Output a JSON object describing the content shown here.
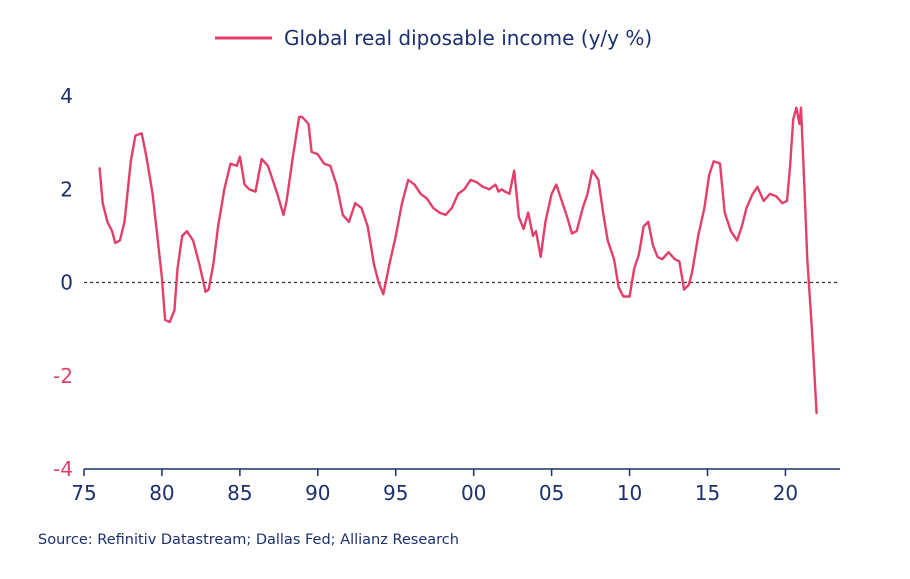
{
  "colors": {
    "series": "#e2406a",
    "axis": "#1c2f6e",
    "negative_tick": "#e2406a",
    "zero_line": "#333333"
  },
  "source": "Source: Refinitiv Datastream; Dallas Fed; Allianz Research",
  "chart_data": {
    "type": "line",
    "title": "",
    "xlabel": "",
    "ylabel": "",
    "xlim": [
      1975,
      2023.5
    ],
    "ylim": [
      -4,
      4
    ],
    "x_ticks": [
      {
        "value": 1975,
        "label": "75"
      },
      {
        "value": 1980,
        "label": "80"
      },
      {
        "value": 1985,
        "label": "85"
      },
      {
        "value": 1990,
        "label": "90"
      },
      {
        "value": 1995,
        "label": "95"
      },
      {
        "value": 2000,
        "label": "00"
      },
      {
        "value": 2005,
        "label": "05"
      },
      {
        "value": 2010,
        "label": "10"
      },
      {
        "value": 2015,
        "label": "15"
      },
      {
        "value": 2020,
        "label": "20"
      }
    ],
    "y_ticks": [
      {
        "value": 4,
        "label": "4"
      },
      {
        "value": 2,
        "label": "2"
      },
      {
        "value": 0,
        "label": "0"
      },
      {
        "value": -2,
        "label": "-2"
      },
      {
        "value": -4,
        "label": "-4"
      }
    ],
    "reference_line": {
      "y": 0,
      "style": "dotted"
    },
    "grid": false,
    "legend": "top-center",
    "series": [
      {
        "name": "Global real diposable income (y/y %)",
        "x": [
          1976.0,
          1976.2,
          1976.5,
          1976.8,
          1977.0,
          1977.3,
          1977.6,
          1978.0,
          1978.3,
          1978.7,
          1979.0,
          1979.4,
          1979.7,
          1980.0,
          1980.2,
          1980.5,
          1980.8,
          1981.0,
          1981.3,
          1981.6,
          1982.0,
          1982.4,
          1982.8,
          1983.0,
          1983.3,
          1983.6,
          1984.0,
          1984.4,
          1984.8,
          1985.0,
          1985.3,
          1985.6,
          1986.0,
          1986.4,
          1986.8,
          1987.0,
          1987.4,
          1987.8,
          1988.0,
          1988.4,
          1988.8,
          1989.0,
          1989.4,
          1989.6,
          1990.0,
          1990.4,
          1990.8,
          1991.2,
          1991.6,
          1992.0,
          1992.4,
          1992.8,
          1993.2,
          1993.6,
          1993.9,
          1994.2,
          1994.6,
          1995.0,
          1995.4,
          1995.8,
          1996.2,
          1996.6,
          1997.0,
          1997.4,
          1997.8,
          1998.2,
          1998.6,
          1999.0,
          1999.4,
          1999.8,
          2000.2,
          2000.6,
          2001.0,
          2001.4,
          2001.6,
          2001.8,
          2002.0,
          2002.3,
          2002.6,
          2002.9,
          2003.2,
          2003.5,
          2003.8,
          2004.0,
          2004.3,
          2004.6,
          2005.0,
          2005.3,
          2005.6,
          2006.0,
          2006.3,
          2006.6,
          2007.0,
          2007.3,
          2007.6,
          2008.0,
          2008.3,
          2008.6,
          2009.0,
          2009.3,
          2009.6,
          2010.0,
          2010.3,
          2010.6,
          2010.9,
          2011.2,
          2011.5,
          2011.8,
          2012.1,
          2012.5,
          2012.9,
          2013.2,
          2013.5,
          2013.8,
          2014.0,
          2014.4,
          2014.8,
          2015.1,
          2015.4,
          2015.8,
          2016.1,
          2016.5,
          2016.9,
          2017.2,
          2017.5,
          2017.9,
          2018.2,
          2018.6,
          2019.0,
          2019.4,
          2019.8,
          2020.1,
          2020.3,
          2020.5,
          2020.7,
          2020.9,
          2021.0,
          2021.2,
          2021.4,
          2021.7,
          2022.0
        ],
        "values": [
          2.45,
          1.7,
          1.3,
          1.1,
          0.85,
          0.9,
          1.3,
          2.6,
          3.15,
          3.2,
          2.7,
          1.9,
          1.0,
          0.1,
          -0.8,
          -0.85,
          -0.6,
          0.3,
          1.0,
          1.1,
          0.9,
          0.4,
          -0.2,
          -0.15,
          0.4,
          1.2,
          2.0,
          2.55,
          2.5,
          2.7,
          2.1,
          2.0,
          1.95,
          2.65,
          2.5,
          2.3,
          1.9,
          1.45,
          1.75,
          2.7,
          3.55,
          3.55,
          3.4,
          2.8,
          2.75,
          2.55,
          2.5,
          2.1,
          1.45,
          1.3,
          1.7,
          1.6,
          1.2,
          0.4,
          0.0,
          -0.25,
          0.4,
          1.0,
          1.7,
          2.2,
          2.1,
          1.9,
          1.8,
          1.6,
          1.5,
          1.45,
          1.6,
          1.9,
          2.0,
          2.2,
          2.15,
          2.05,
          2.0,
          2.1,
          1.95,
          2.0,
          1.95,
          1.9,
          2.4,
          1.4,
          1.15,
          1.5,
          1.0,
          1.1,
          0.55,
          1.3,
          1.9,
          2.1,
          1.8,
          1.4,
          1.05,
          1.1,
          1.6,
          1.9,
          2.4,
          2.2,
          1.5,
          0.9,
          0.5,
          -0.1,
          -0.3,
          -0.3,
          0.3,
          0.6,
          1.2,
          1.3,
          0.8,
          0.55,
          0.5,
          0.65,
          0.5,
          0.45,
          -0.15,
          -0.05,
          0.2,
          1.0,
          1.6,
          2.3,
          2.6,
          2.55,
          1.5,
          1.1,
          0.9,
          1.2,
          1.6,
          1.9,
          2.05,
          1.75,
          1.9,
          1.85,
          1.7,
          1.75,
          2.5,
          3.5,
          3.75,
          3.4,
          3.75,
          2.2,
          0.5,
          -1.0,
          -2.8
        ]
      }
    ]
  }
}
